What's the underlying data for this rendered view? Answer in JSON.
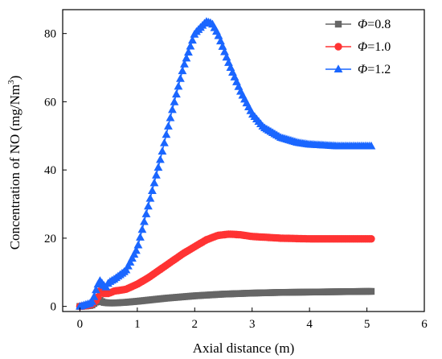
{
  "chart_data": {
    "type": "line",
    "title": "",
    "xlabel": "Axial distance (m)",
    "ylabel": "Concentration of NO  (mg/Nm³)",
    "ylabel_parts": {
      "main": "Concentration of NO  (mg/Nm",
      "sup": "3",
      "close": ")"
    },
    "xlim": [
      -0.3,
      6
    ],
    "ylim": [
      -1.5,
      87
    ],
    "xticks": [
      0,
      1,
      2,
      3,
      4,
      5,
      6
    ],
    "yticks": [
      0,
      20,
      40,
      60,
      80
    ],
    "grid": false,
    "legend_position": "top-right",
    "series": [
      {
        "name": "Φ=0.8",
        "legend_symbol": "Φ",
        "legend_value": "=0.8",
        "color": "#666666",
        "marker": "square",
        "x": [
          0,
          0.1,
          0.2,
          0.3,
          0.35,
          0.4,
          0.5,
          0.6,
          0.8,
          1.0,
          1.5,
          2.0,
          2.5,
          3.0,
          3.5,
          4.0,
          4.5,
          5.0,
          5.1
        ],
        "y": [
          0,
          0.1,
          0.3,
          1.5,
          1.8,
          1.2,
          1.0,
          1.0,
          1.2,
          1.5,
          2.4,
          3.1,
          3.6,
          3.9,
          4.1,
          4.2,
          4.3,
          4.4,
          4.4
        ]
      },
      {
        "name": "Φ=1.0",
        "legend_symbol": "Φ",
        "legend_value": "=1.0",
        "color": "#ff3333",
        "marker": "circle",
        "x": [
          0,
          0.1,
          0.2,
          0.3,
          0.35,
          0.4,
          0.5,
          0.6,
          0.8,
          1.0,
          1.2,
          1.5,
          1.8,
          2.0,
          2.2,
          2.4,
          2.6,
          2.8,
          3.0,
          3.5,
          4.0,
          4.5,
          5.0,
          5.1
        ],
        "y": [
          0,
          0.2,
          0.5,
          2.0,
          4.5,
          3.8,
          3.8,
          4.5,
          5.0,
          6.5,
          8.5,
          12.0,
          15.5,
          17.5,
          19.5,
          20.8,
          21.2,
          21.0,
          20.5,
          20.0,
          19.8,
          19.8,
          19.8,
          19.8
        ]
      },
      {
        "name": "Φ=1.2",
        "legend_symbol": "Φ",
        "legend_value": "=1.2",
        "color": "#1a66ff",
        "marker": "triangle",
        "x": [
          0,
          0.1,
          0.2,
          0.25,
          0.3,
          0.35,
          0.4,
          0.45,
          0.5,
          0.6,
          0.8,
          1.0,
          1.2,
          1.4,
          1.6,
          1.8,
          2.0,
          2.2,
          2.3,
          2.4,
          2.6,
          2.8,
          3.0,
          3.2,
          3.5,
          3.8,
          4.0,
          4.5,
          5.0,
          5.1
        ],
        "y": [
          0,
          0.5,
          1.0,
          3.0,
          6.0,
          7.5,
          6.5,
          5.5,
          7.0,
          8.0,
          10.5,
          17.0,
          30.0,
          43.0,
          57.0,
          70.0,
          80.0,
          83.5,
          83.0,
          80.0,
          71.0,
          63.0,
          56.5,
          52.5,
          49.5,
          48.0,
          47.5,
          47.0,
          47.0,
          47.0
        ]
      }
    ]
  }
}
